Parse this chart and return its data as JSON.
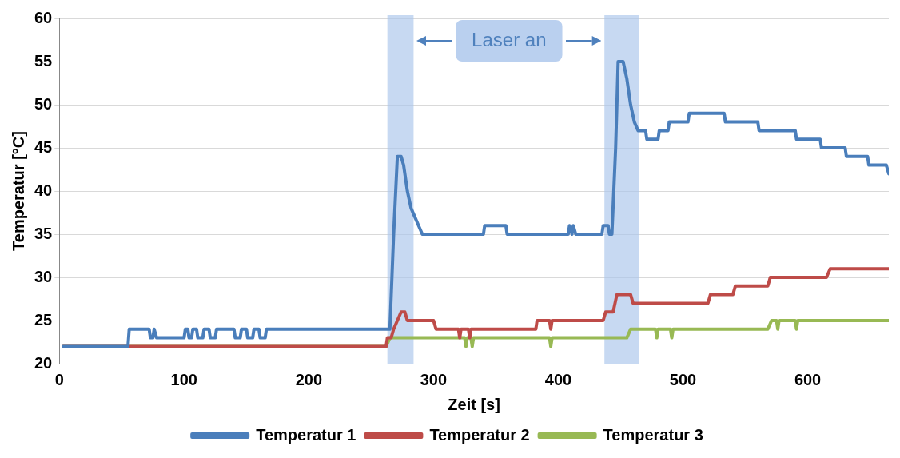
{
  "chart_data": {
    "type": "line",
    "xlabel": "Zeit [s]",
    "ylabel": "Temperatur [°C]",
    "xlim": [
      0,
      665
    ],
    "xticks": [
      0,
      100,
      200,
      300,
      400,
      500,
      600
    ],
    "ylim": [
      20,
      60
    ],
    "yticks": [
      20,
      25,
      30,
      35,
      40,
      45,
      50,
      55,
      60
    ],
    "grid": "y",
    "legend": "bottom",
    "marker": "none",
    "line_style": "solid",
    "series": [
      {
        "name": "Temperatur 1",
        "color": "#4a7ebb",
        "x": [
          3,
          55,
          56,
          72,
          73,
          75,
          76,
          78,
          100,
          101,
          103,
          104,
          106,
          107,
          110,
          111,
          115,
          116,
          120,
          121,
          125,
          126,
          140,
          141,
          145,
          146,
          150,
          151,
          155,
          156,
          160,
          161,
          165,
          166,
          175,
          176,
          265,
          268,
          271,
          274,
          276,
          279,
          282,
          285,
          288,
          291,
          294,
          340,
          341,
          358,
          359,
          408,
          409,
          411,
          412,
          414,
          415,
          435,
          436,
          440,
          441,
          443,
          446,
          448,
          452,
          455,
          458,
          461,
          464,
          467,
          470,
          471,
          480,
          481,
          488,
          489,
          504,
          505,
          533,
          534,
          560,
          561,
          590,
          591,
          610,
          611,
          630,
          631,
          648,
          649,
          663,
          665
        ],
        "values": [
          22,
          22,
          24,
          24,
          23,
          23,
          24,
          23,
          23,
          24,
          24,
          23,
          23,
          24,
          24,
          23,
          23,
          24,
          24,
          23,
          23,
          24,
          24,
          23,
          23,
          24,
          24,
          23,
          23,
          24,
          24,
          23,
          23,
          24,
          24,
          24,
          24,
          35,
          44,
          44,
          43,
          40,
          38,
          37,
          36,
          35,
          35,
          35,
          36,
          36,
          35,
          35,
          36,
          35,
          36,
          35,
          35,
          35,
          36,
          36,
          35,
          35,
          45,
          55,
          55,
          53,
          50,
          48,
          47,
          47,
          47,
          46,
          46,
          47,
          47,
          48,
          48,
          49,
          49,
          48,
          48,
          47,
          47,
          46,
          46,
          45,
          45,
          44,
          44,
          43,
          43,
          42
        ]
      },
      {
        "name": "Temperatur 2",
        "color": "#be4b48",
        "x": [
          3,
          262,
          263,
          266,
          268,
          271,
          274,
          277,
          279,
          300,
          302,
          320,
          321,
          322,
          328,
          329,
          330,
          337,
          382,
          383,
          393,
          394,
          395,
          436,
          438,
          444,
          447,
          458,
          460,
          520,
          522,
          540,
          542,
          568,
          570,
          615,
          618,
          665
        ],
        "values": [
          22,
          22,
          23,
          23,
          24,
          25,
          26,
          26,
          25,
          25,
          24,
          24,
          23,
          24,
          24,
          23,
          24,
          24,
          24,
          25,
          25,
          24,
          25,
          25,
          26,
          26,
          28,
          28,
          27,
          27,
          28,
          28,
          29,
          29,
          30,
          30,
          31,
          31
        ]
      },
      {
        "name": "Temperatur 3",
        "color": "#98b954",
        "x": [
          3,
          262,
          265,
          325,
          326,
          327,
          330,
          331,
          332,
          393,
          394,
          395,
          455,
          458,
          478,
          479,
          480,
          490,
          491,
          492,
          568,
          571,
          575,
          576,
          577,
          590,
          591,
          592,
          665
        ],
        "values": [
          22,
          22,
          23,
          23,
          22,
          23,
          23,
          22,
          23,
          23,
          22,
          23,
          23,
          24,
          24,
          23,
          24,
          24,
          23,
          24,
          24,
          25,
          25,
          24,
          25,
          25,
          24,
          25,
          25
        ]
      }
    ],
    "bands": [
      {
        "axis": "x",
        "from": 263,
        "to": 284,
        "color": "#a9c4eb"
      },
      {
        "axis": "x",
        "from": 437,
        "to": 465,
        "color": "#a9c4eb"
      }
    ],
    "annotations": [
      "Laser an"
    ]
  }
}
